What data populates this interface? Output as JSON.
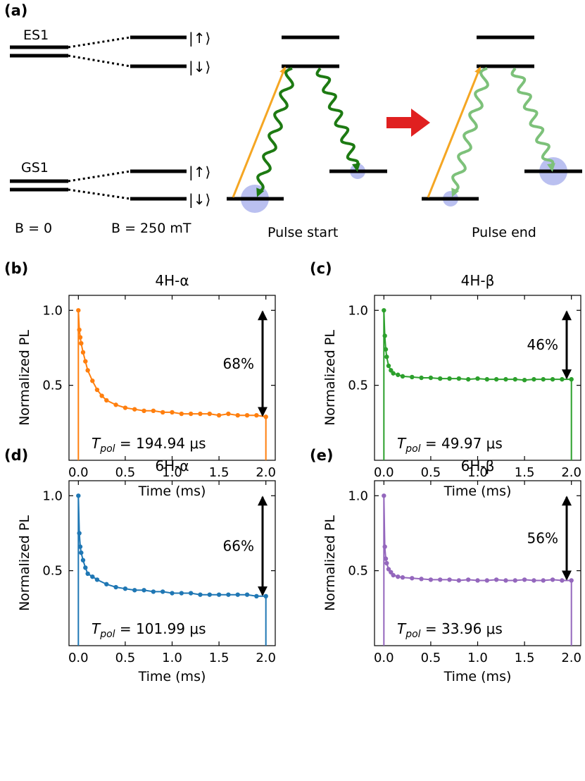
{
  "diagram": {
    "panel_label": "(a)",
    "es_label": "ES1",
    "gs_label": "GS1",
    "ket_up": "|↑⟩",
    "ket_down": "|↓⟩",
    "b0_label": "B = 0",
    "b250_label": "B = 250 mT",
    "pulse_start_label": "Pulse start",
    "pulse_end_label": "Pulse end",
    "colors": {
      "laser": "#f5a623",
      "emission_dark": "#1d7a12",
      "emission_light": "#7dc17a",
      "population": "#a9b0ec",
      "arrow": "#e02020"
    }
  },
  "chart_data": [
    {
      "type": "line",
      "panel_label": "(b)",
      "title": "4H-α",
      "xlabel": "Time (ms)",
      "ylabel": "Normalized PL",
      "color": "#ff7f0e",
      "xlim": [
        -0.1,
        2.1
      ],
      "ylim": [
        0.0,
        1.1
      ],
      "xticks": [
        "0.0",
        "0.5",
        "1.0",
        "1.5",
        "2.0"
      ],
      "yticks": [
        "0.5",
        "1.0"
      ],
      "x": [
        0.0,
        0.01,
        0.02,
        0.03,
        0.05,
        0.075,
        0.1,
        0.15,
        0.2,
        0.25,
        0.3,
        0.4,
        0.5,
        0.6,
        0.7,
        0.8,
        0.9,
        1.0,
        1.1,
        1.2,
        1.3,
        1.4,
        1.5,
        1.6,
        1.7,
        1.8,
        1.9,
        2.0
      ],
      "y": [
        1.0,
        0.87,
        0.82,
        0.78,
        0.72,
        0.66,
        0.6,
        0.53,
        0.47,
        0.43,
        0.4,
        0.37,
        0.35,
        0.34,
        0.33,
        0.33,
        0.32,
        0.32,
        0.31,
        0.31,
        0.31,
        0.31,
        0.3,
        0.31,
        0.3,
        0.3,
        0.3,
        0.29
      ],
      "percent_label": "68%",
      "tpol_label": "T",
      "tpol_sub": "pol",
      "tpol_value": " = 194.94 μs"
    },
    {
      "type": "line",
      "panel_label": "(c)",
      "title": "4H-β",
      "xlabel": "Time (ms)",
      "ylabel": "Normalized PL",
      "color": "#2ca02c",
      "xlim": [
        -0.1,
        2.1
      ],
      "ylim": [
        0.0,
        1.1
      ],
      "xticks": [
        "0.0",
        "0.5",
        "1.0",
        "1.5",
        "2.0"
      ],
      "yticks": [
        "0.5",
        "1.0"
      ],
      "x": [
        0.0,
        0.01,
        0.02,
        0.03,
        0.05,
        0.075,
        0.1,
        0.15,
        0.2,
        0.3,
        0.4,
        0.5,
        0.6,
        0.7,
        0.8,
        0.9,
        1.0,
        1.1,
        1.2,
        1.3,
        1.4,
        1.5,
        1.6,
        1.7,
        1.8,
        1.9,
        2.0
      ],
      "y": [
        1.0,
        0.83,
        0.74,
        0.69,
        0.63,
        0.6,
        0.58,
        0.57,
        0.56,
        0.555,
        0.55,
        0.55,
        0.545,
        0.545,
        0.545,
        0.54,
        0.545,
        0.54,
        0.54,
        0.54,
        0.54,
        0.535,
        0.54,
        0.54,
        0.54,
        0.54,
        0.54
      ],
      "percent_label": "46%",
      "tpol_label": "T",
      "tpol_sub": "pol",
      "tpol_value": " = 49.97 μs"
    },
    {
      "type": "line",
      "panel_label": "(d)",
      "title": "6H-α",
      "xlabel": "Time (ms)",
      "ylabel": "Normalized PL",
      "color": "#1f77b4",
      "xlim": [
        -0.1,
        2.1
      ],
      "ylim": [
        0.0,
        1.1
      ],
      "xticks": [
        "0.0",
        "0.5",
        "1.0",
        "1.5",
        "2.0"
      ],
      "yticks": [
        "0.5",
        "1.0"
      ],
      "x": [
        0.0,
        0.01,
        0.02,
        0.03,
        0.05,
        0.075,
        0.1,
        0.15,
        0.2,
        0.3,
        0.4,
        0.5,
        0.6,
        0.7,
        0.8,
        0.9,
        1.0,
        1.1,
        1.2,
        1.3,
        1.4,
        1.5,
        1.6,
        1.7,
        1.8,
        1.9,
        2.0
      ],
      "y": [
        1.0,
        0.75,
        0.66,
        0.62,
        0.57,
        0.52,
        0.48,
        0.46,
        0.44,
        0.41,
        0.39,
        0.38,
        0.37,
        0.37,
        0.36,
        0.36,
        0.35,
        0.35,
        0.35,
        0.34,
        0.34,
        0.34,
        0.34,
        0.34,
        0.34,
        0.33,
        0.33
      ],
      "percent_label": "66%",
      "tpol_label": "T",
      "tpol_sub": "pol",
      "tpol_value": " = 101.99 μs"
    },
    {
      "type": "line",
      "panel_label": "(e)",
      "title": "6H-β",
      "xlabel": "Time (ms)",
      "ylabel": "Normalized PL",
      "color": "#9467bd",
      "xlim": [
        -0.1,
        2.1
      ],
      "ylim": [
        0.0,
        1.1
      ],
      "xticks": [
        "0.0",
        "0.5",
        "1.0",
        "1.5",
        "2.0"
      ],
      "yticks": [
        "0.5",
        "1.0"
      ],
      "x": [
        0.0,
        0.01,
        0.02,
        0.03,
        0.05,
        0.075,
        0.1,
        0.15,
        0.2,
        0.3,
        0.4,
        0.5,
        0.6,
        0.7,
        0.8,
        0.9,
        1.0,
        1.1,
        1.2,
        1.3,
        1.4,
        1.5,
        1.6,
        1.7,
        1.8,
        1.9,
        2.0
      ],
      "y": [
        1.0,
        0.66,
        0.58,
        0.55,
        0.51,
        0.49,
        0.47,
        0.46,
        0.455,
        0.45,
        0.445,
        0.44,
        0.44,
        0.44,
        0.435,
        0.44,
        0.435,
        0.435,
        0.44,
        0.435,
        0.435,
        0.44,
        0.435,
        0.435,
        0.44,
        0.435,
        0.435
      ],
      "percent_label": "56%",
      "tpol_label": "T",
      "tpol_sub": "pol",
      "tpol_value": " = 33.96 μs"
    }
  ]
}
